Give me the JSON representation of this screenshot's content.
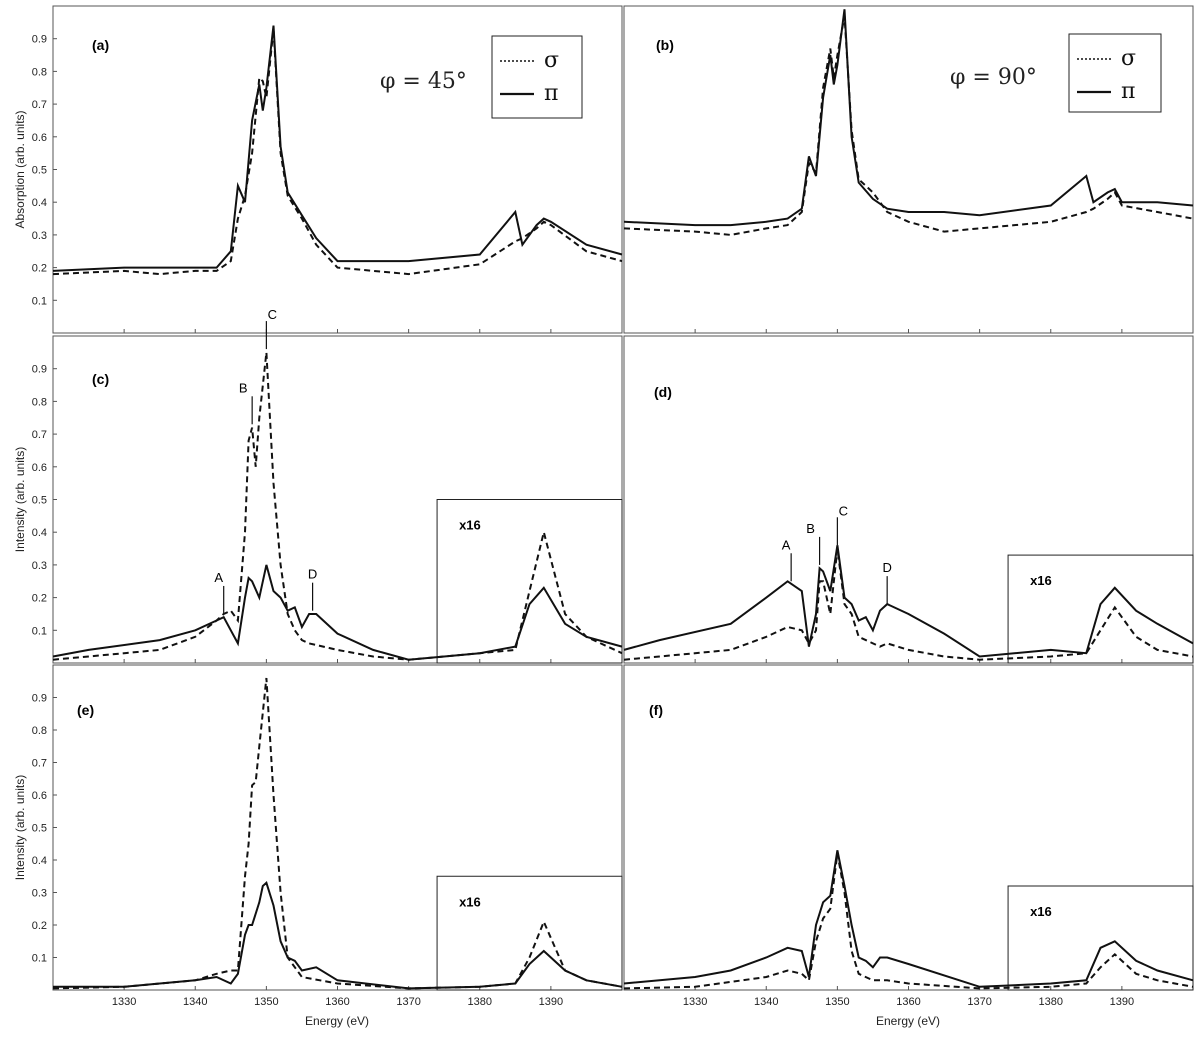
{
  "figure": {
    "xlabel": "Energy (eV)",
    "x_ticks": [
      1330,
      1340,
      1350,
      1360,
      1370,
      1380,
      1390
    ],
    "y_ticks": [
      0.1,
      0.2,
      0.3,
      0.4,
      0.5,
      0.6,
      0.7,
      0.8,
      0.9
    ],
    "legend": {
      "sigma": "σ",
      "pi": "π"
    },
    "colors": {
      "line": "#111111",
      "frame": "#555555"
    }
  },
  "chart_data": [
    {
      "type": "line",
      "panel": "(a)",
      "ylabel": "Absorption (arb. units)",
      "annotation": "φ = 45°",
      "xlim": [
        1320,
        1400
      ],
      "ylim": [
        0,
        1.0
      ],
      "x_ticks": [
        1330,
        1340,
        1350,
        1360,
        1370,
        1380,
        1390
      ],
      "y_ticks": [
        0.1,
        0.2,
        0.3,
        0.4,
        0.5,
        0.6,
        0.7,
        0.8,
        0.9
      ],
      "peak_labels": [],
      "inset": null,
      "series": [
        {
          "name": "σ",
          "x": [
            1320,
            1330,
            1335,
            1340,
            1343,
            1345,
            1346,
            1347,
            1348,
            1349,
            1349.5,
            1350,
            1351,
            1352,
            1353,
            1355,
            1357,
            1360,
            1370,
            1380,
            1385,
            1386,
            1388,
            1389,
            1390,
            1395,
            1400
          ],
          "y": [
            0.18,
            0.19,
            0.18,
            0.19,
            0.19,
            0.22,
            0.35,
            0.42,
            0.55,
            0.78,
            0.77,
            0.72,
            0.93,
            0.55,
            0.42,
            0.35,
            0.27,
            0.2,
            0.18,
            0.21,
            0.28,
            0.29,
            0.32,
            0.34,
            0.33,
            0.25,
            0.22
          ]
        },
        {
          "name": "π",
          "x": [
            1320,
            1330,
            1335,
            1340,
            1343,
            1345,
            1346,
            1347,
            1348,
            1349,
            1349.5,
            1350,
            1351,
            1352,
            1353,
            1355,
            1357,
            1360,
            1370,
            1380,
            1385,
            1386,
            1388,
            1389,
            1390,
            1395,
            1400
          ],
          "y": [
            0.19,
            0.2,
            0.2,
            0.2,
            0.2,
            0.25,
            0.45,
            0.4,
            0.65,
            0.76,
            0.68,
            0.75,
            0.94,
            0.57,
            0.43,
            0.36,
            0.29,
            0.22,
            0.22,
            0.24,
            0.37,
            0.27,
            0.33,
            0.35,
            0.34,
            0.27,
            0.24
          ]
        }
      ]
    },
    {
      "type": "line",
      "panel": "(b)",
      "ylabel": "",
      "annotation": "φ = 90°",
      "xlim": [
        1320,
        1400
      ],
      "ylim": [
        0,
        1.0
      ],
      "x_ticks": [
        1330,
        1340,
        1350,
        1360,
        1370,
        1380,
        1390
      ],
      "y_ticks": [],
      "peak_labels": [],
      "inset": null,
      "series": [
        {
          "name": "σ",
          "x": [
            1320,
            1330,
            1335,
            1340,
            1343,
            1345,
            1346,
            1347,
            1348,
            1349,
            1349.5,
            1350,
            1351,
            1352,
            1353,
            1355,
            1357,
            1360,
            1365,
            1370,
            1380,
            1385,
            1386,
            1388,
            1389,
            1390,
            1395,
            1400
          ],
          "y": [
            0.32,
            0.31,
            0.3,
            0.32,
            0.33,
            0.37,
            0.52,
            0.49,
            0.75,
            0.87,
            0.78,
            0.85,
            0.97,
            0.62,
            0.47,
            0.43,
            0.37,
            0.34,
            0.31,
            0.32,
            0.34,
            0.37,
            0.38,
            0.41,
            0.43,
            0.39,
            0.37,
            0.35
          ]
        },
        {
          "name": "π",
          "x": [
            1320,
            1330,
            1335,
            1340,
            1343,
            1345,
            1346,
            1347,
            1348,
            1349,
            1349.5,
            1350,
            1351,
            1352,
            1353,
            1355,
            1357,
            1360,
            1365,
            1370,
            1380,
            1385,
            1386,
            1388,
            1389,
            1390,
            1395,
            1400
          ],
          "y": [
            0.34,
            0.33,
            0.33,
            0.34,
            0.35,
            0.38,
            0.54,
            0.48,
            0.72,
            0.85,
            0.76,
            0.82,
            0.99,
            0.6,
            0.46,
            0.41,
            0.38,
            0.37,
            0.37,
            0.36,
            0.39,
            0.48,
            0.4,
            0.43,
            0.44,
            0.4,
            0.4,
            0.39
          ]
        }
      ]
    },
    {
      "type": "line",
      "panel": "(c)",
      "ylabel": "Intensity (arb. units)",
      "annotation": "",
      "xlim": [
        1320,
        1400
      ],
      "ylim": [
        0,
        1.0
      ],
      "x_ticks": [
        1330,
        1340,
        1350,
        1360,
        1370,
        1380,
        1390
      ],
      "y_ticks": [
        0.1,
        0.2,
        0.3,
        0.4,
        0.5,
        0.6,
        0.7,
        0.8,
        0.9
      ],
      "peak_labels": [
        {
          "text": "A",
          "x": 1344,
          "y": 0.15
        },
        {
          "text": "B",
          "x": 1348,
          "y": 0.73
        },
        {
          "text": "C",
          "x": 1350,
          "y": 0.96
        },
        {
          "text": "D",
          "x": 1356.5,
          "y": 0.16
        }
      ],
      "inset": {
        "label": "x16",
        "x_from": 1374,
        "y_top": 0.5
      },
      "series": [
        {
          "name": "σ",
          "x": [
            1320,
            1325,
            1335,
            1340,
            1343,
            1344,
            1345,
            1346,
            1347,
            1347.5,
            1348,
            1348.5,
            1349,
            1350,
            1351,
            1352,
            1353,
            1354,
            1355,
            1356,
            1360,
            1365,
            1370,
            1375,
            1380,
            1385,
            1387,
            1389,
            1392,
            1395,
            1400
          ],
          "y": [
            0.01,
            0.02,
            0.04,
            0.08,
            0.13,
            0.15,
            0.16,
            0.13,
            0.4,
            0.68,
            0.72,
            0.6,
            0.75,
            0.95,
            0.55,
            0.3,
            0.15,
            0.1,
            0.07,
            0.06,
            0.04,
            0.02,
            0.01,
            0.02,
            0.03,
            0.04,
            0.22,
            0.4,
            0.15,
            0.08,
            0.03
          ]
        },
        {
          "name": "π",
          "x": [
            1320,
            1325,
            1335,
            1340,
            1343,
            1344,
            1345,
            1346,
            1347,
            1347.5,
            1348,
            1349,
            1350,
            1351,
            1352,
            1353,
            1354,
            1355,
            1356,
            1357,
            1360,
            1365,
            1370,
            1375,
            1380,
            1385,
            1387,
            1389,
            1392,
            1395,
            1400
          ],
          "y": [
            0.02,
            0.04,
            0.07,
            0.1,
            0.13,
            0.14,
            0.1,
            0.06,
            0.2,
            0.26,
            0.25,
            0.2,
            0.3,
            0.22,
            0.2,
            0.16,
            0.17,
            0.11,
            0.15,
            0.15,
            0.09,
            0.04,
            0.01,
            0.02,
            0.03,
            0.05,
            0.18,
            0.23,
            0.12,
            0.08,
            0.05
          ]
        }
      ]
    },
    {
      "type": "line",
      "panel": "(d)",
      "ylabel": "",
      "annotation": "",
      "xlim": [
        1320,
        1400
      ],
      "ylim": [
        0,
        1.0
      ],
      "x_ticks": [
        1330,
        1340,
        1350,
        1360,
        1370,
        1380,
        1390
      ],
      "y_ticks": [],
      "peak_labels": [
        {
          "text": "A",
          "x": 1343.5,
          "y": 0.25
        },
        {
          "text": "B",
          "x": 1347.5,
          "y": 0.3
        },
        {
          "text": "C",
          "x": 1350,
          "y": 0.36
        },
        {
          "text": "D",
          "x": 1357,
          "y": 0.18
        }
      ],
      "inset": {
        "label": "x16",
        "x_from": 1374,
        "y_top": 0.33
      },
      "series": [
        {
          "name": "σ",
          "x": [
            1320,
            1325,
            1335,
            1340,
            1343,
            1345,
            1346,
            1347,
            1347.5,
            1348,
            1349,
            1350,
            1351,
            1352,
            1353,
            1355,
            1356,
            1357,
            1360,
            1365,
            1370,
            1380,
            1385,
            1387,
            1389,
            1392,
            1395,
            1400
          ],
          "y": [
            0.01,
            0.02,
            0.04,
            0.08,
            0.11,
            0.1,
            0.06,
            0.1,
            0.25,
            0.25,
            0.15,
            0.35,
            0.18,
            0.15,
            0.08,
            0.06,
            0.05,
            0.06,
            0.04,
            0.02,
            0.01,
            0.02,
            0.03,
            0.1,
            0.17,
            0.08,
            0.04,
            0.02
          ]
        },
        {
          "name": "π",
          "x": [
            1320,
            1325,
            1335,
            1340,
            1343,
            1345,
            1346,
            1347,
            1347.5,
            1348,
            1349,
            1350,
            1351,
            1352,
            1353,
            1354,
            1355,
            1356,
            1357,
            1360,
            1365,
            1370,
            1380,
            1385,
            1387,
            1389,
            1392,
            1395,
            1400
          ],
          "y": [
            0.04,
            0.07,
            0.12,
            0.2,
            0.25,
            0.22,
            0.05,
            0.15,
            0.29,
            0.28,
            0.22,
            0.36,
            0.2,
            0.18,
            0.13,
            0.14,
            0.1,
            0.16,
            0.18,
            0.15,
            0.09,
            0.02,
            0.04,
            0.03,
            0.18,
            0.23,
            0.16,
            0.12,
            0.06
          ]
        }
      ]
    },
    {
      "type": "line",
      "panel": "(e)",
      "ylabel": "Intensity (arb. units)",
      "annotation": "",
      "xlim": [
        1320,
        1400
      ],
      "ylim": [
        0,
        1.0
      ],
      "x_ticks": [
        1330,
        1340,
        1350,
        1360,
        1370,
        1380,
        1390
      ],
      "y_ticks": [
        0.1,
        0.2,
        0.3,
        0.4,
        0.5,
        0.6,
        0.7,
        0.8,
        0.9
      ],
      "peak_labels": [],
      "inset": {
        "label": "x16",
        "x_from": 1374,
        "y_top": 0.35
      },
      "series": [
        {
          "name": "σ",
          "x": [
            1320,
            1330,
            1340,
            1343,
            1345,
            1346,
            1347,
            1347.5,
            1348,
            1348.5,
            1349,
            1350,
            1351,
            1352,
            1353,
            1355,
            1360,
            1370,
            1380,
            1385,
            1387,
            1389,
            1392,
            1395,
            1400
          ],
          "y": [
            0.005,
            0.01,
            0.03,
            0.05,
            0.06,
            0.06,
            0.35,
            0.45,
            0.63,
            0.64,
            0.75,
            0.96,
            0.6,
            0.3,
            0.1,
            0.04,
            0.02,
            0.005,
            0.01,
            0.02,
            0.1,
            0.21,
            0.06,
            0.03,
            0.01
          ]
        },
        {
          "name": "π",
          "x": [
            1320,
            1330,
            1340,
            1343,
            1345,
            1346,
            1347,
            1347.5,
            1348,
            1349,
            1349.5,
            1350,
            1351,
            1352,
            1353,
            1354,
            1355,
            1357,
            1360,
            1370,
            1380,
            1385,
            1387,
            1389,
            1392,
            1395,
            1400
          ],
          "y": [
            0.01,
            0.01,
            0.03,
            0.04,
            0.02,
            0.05,
            0.17,
            0.2,
            0.2,
            0.27,
            0.32,
            0.33,
            0.26,
            0.15,
            0.1,
            0.09,
            0.06,
            0.07,
            0.03,
            0.005,
            0.01,
            0.02,
            0.08,
            0.12,
            0.06,
            0.03,
            0.01
          ]
        }
      ]
    },
    {
      "type": "line",
      "panel": "(f)",
      "ylabel": "",
      "annotation": "",
      "xlim": [
        1320,
        1400
      ],
      "ylim": [
        0,
        1.0
      ],
      "x_ticks": [
        1330,
        1340,
        1350,
        1360,
        1370,
        1380,
        1390
      ],
      "y_ticks": [],
      "peak_labels": [],
      "inset": {
        "label": "x16",
        "x_from": 1374,
        "y_top": 0.32
      },
      "series": [
        {
          "name": "σ",
          "x": [
            1320,
            1330,
            1340,
            1343,
            1345,
            1346,
            1347,
            1348,
            1349,
            1350,
            1351,
            1352,
            1353,
            1355,
            1357,
            1360,
            1370,
            1380,
            1385,
            1387,
            1389,
            1392,
            1395,
            1400
          ],
          "y": [
            0.005,
            0.01,
            0.04,
            0.06,
            0.05,
            0.03,
            0.15,
            0.22,
            0.25,
            0.42,
            0.3,
            0.12,
            0.05,
            0.03,
            0.03,
            0.02,
            0.005,
            0.01,
            0.02,
            0.07,
            0.11,
            0.05,
            0.03,
            0.01
          ]
        },
        {
          "name": "π",
          "x": [
            1320,
            1330,
            1335,
            1340,
            1343,
            1345,
            1346,
            1347,
            1348,
            1349,
            1350,
            1351,
            1352,
            1353,
            1354,
            1355,
            1356,
            1357,
            1360,
            1370,
            1380,
            1385,
            1387,
            1389,
            1392,
            1395,
            1400
          ],
          "y": [
            0.02,
            0.04,
            0.06,
            0.1,
            0.13,
            0.12,
            0.04,
            0.2,
            0.27,
            0.29,
            0.43,
            0.32,
            0.2,
            0.1,
            0.09,
            0.07,
            0.1,
            0.1,
            0.08,
            0.01,
            0.02,
            0.03,
            0.13,
            0.15,
            0.09,
            0.06,
            0.03
          ]
        }
      ]
    }
  ]
}
